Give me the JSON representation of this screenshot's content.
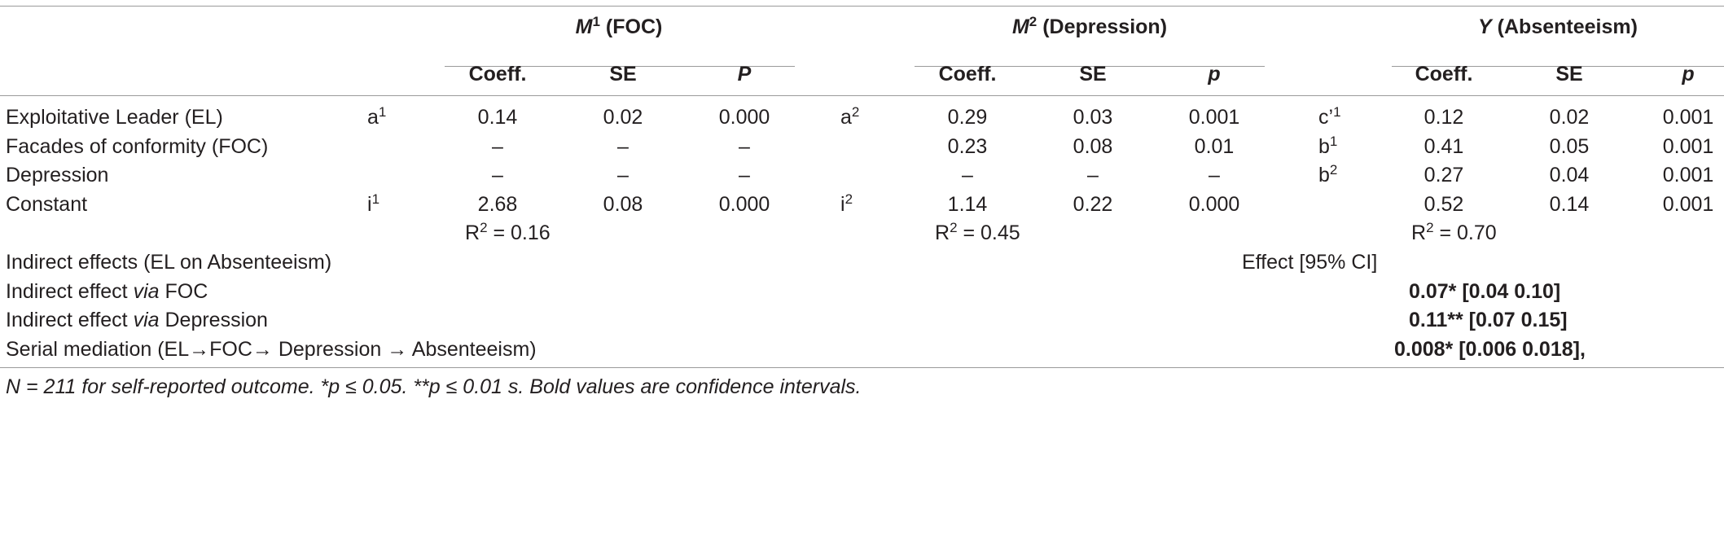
{
  "groups": {
    "m1": {
      "var": "M",
      "sup": "1",
      "label": " (FOC)"
    },
    "m2": {
      "var": "M",
      "sup": "2",
      "label": " (Depression)"
    },
    "y": {
      "var": "Y",
      "label": " (Absenteeism)"
    }
  },
  "col_headers": {
    "m1": [
      "Coeff.",
      "SE",
      "P"
    ],
    "m2": [
      "Coeff.",
      "SE",
      "p"
    ],
    "y": [
      "Coeff.",
      "SE",
      "p"
    ]
  },
  "rows": [
    {
      "label": "Exploitative Leader (EL)",
      "m1_path": {
        "base": "a",
        "sup": "1"
      },
      "m1": [
        "0.14",
        "0.02",
        "0.000"
      ],
      "m2_path": {
        "base": "a",
        "sup": "2"
      },
      "m2": [
        "0.29",
        "0.03",
        "0.001"
      ],
      "y_path": {
        "base": "c’",
        "sup": "1"
      },
      "y": [
        "0.12",
        "0.02",
        "0.001"
      ]
    },
    {
      "label": "Facades of conformity (FOC)",
      "m1_path": {
        "base": "",
        "sup": ""
      },
      "m1": [
        "–",
        "–",
        "–"
      ],
      "m2_path": {
        "base": "",
        "sup": ""
      },
      "m2": [
        "0.23",
        "0.08",
        "0.01"
      ],
      "y_path": {
        "base": "b",
        "sup": "1"
      },
      "y": [
        "0.41",
        "0.05",
        "0.001"
      ]
    },
    {
      "label": "Depression",
      "m1_path": {
        "base": "",
        "sup": ""
      },
      "m1": [
        "–",
        "–",
        "–"
      ],
      "m2_path": {
        "base": "",
        "sup": ""
      },
      "m2": [
        "–",
        "–",
        "–"
      ],
      "y_path": {
        "base": "b",
        "sup": "2"
      },
      "y": [
        "0.27",
        "0.04",
        "0.001"
      ]
    },
    {
      "label": "Constant",
      "m1_path": {
        "base": "i",
        "sup": "1"
      },
      "m1": [
        "2.68",
        "0.08",
        "0.000"
      ],
      "m2_path": {
        "base": "i",
        "sup": "2"
      },
      "m2": [
        "1.14",
        "0.22",
        "0.000"
      ],
      "y_path": {
        "base": "",
        "sup": ""
      },
      "y": [
        "0.52",
        "0.14",
        "0.001"
      ]
    }
  ],
  "r2": {
    "prefix": "R",
    "sup": "2",
    "m1": " = 0.16",
    "m2": " = 0.45",
    "y": " = 0.70"
  },
  "indirect": {
    "title": "Indirect effects (EL on Absenteeism)",
    "col_label": "Effect [95% CI]",
    "rows": [
      {
        "pre": "Indirect effect ",
        "em": "via",
        "post": " FOC",
        "value": "0.07* [0.04 0.10]"
      },
      {
        "pre": "Indirect effect ",
        "em": "via",
        "post": " Depression",
        "value": "0.11** [0.07 0.15]"
      },
      {
        "pre": "Serial mediation (EL→FOC→ Depression → Absenteeism)",
        "em": "",
        "post": "",
        "value": "0.008* [0.006 0.018],"
      }
    ]
  },
  "footnote": "N = 211 for self-reported outcome. *p ≤ 0.05. **p ≤ 0.01 s. Bold values are confidence intervals."
}
